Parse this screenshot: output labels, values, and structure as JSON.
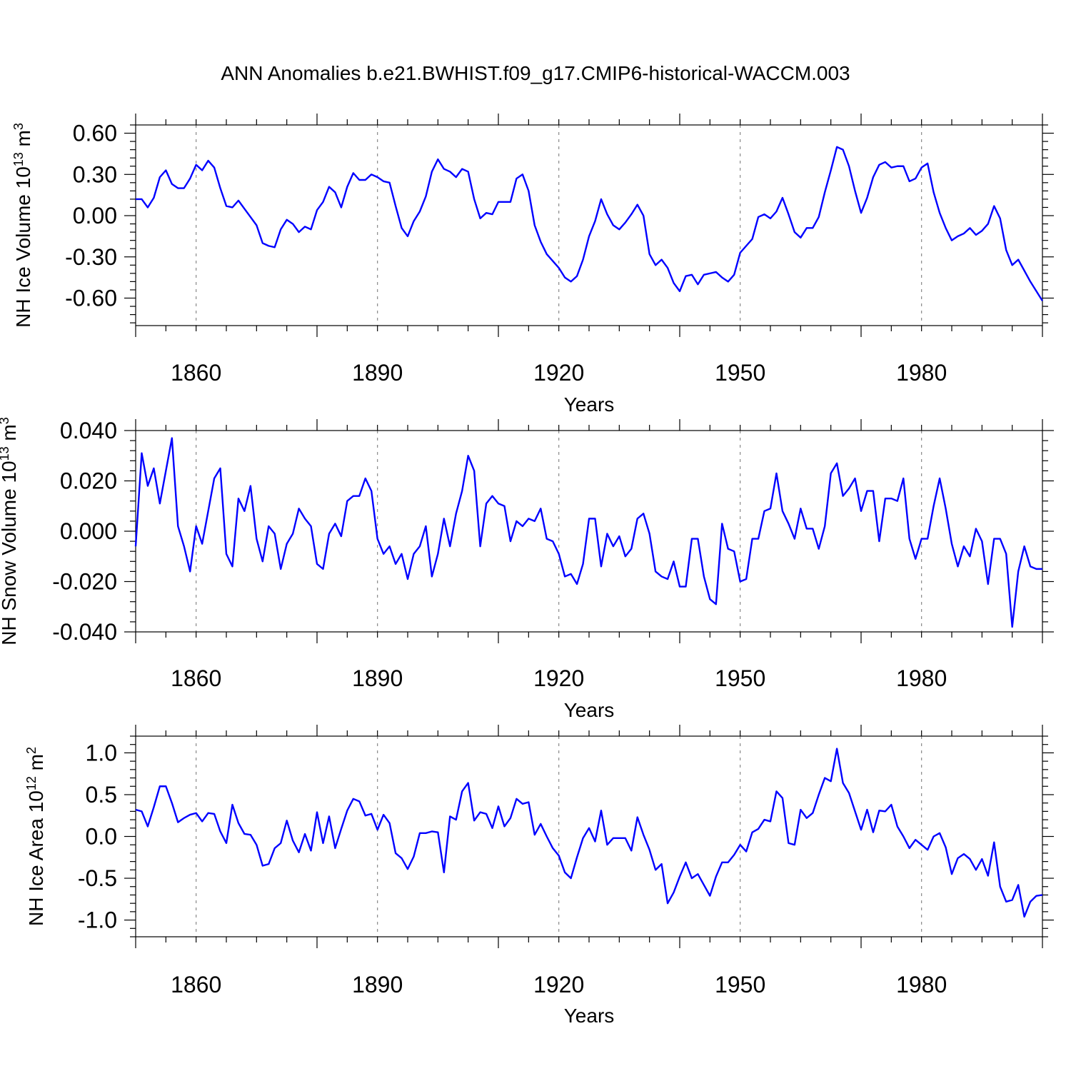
{
  "title": "ANN Anomalies b.e21.BWHIST.f09_g17.CMIP6-historical-WACCM.003",
  "colors": {
    "line": "#0000ff",
    "axis": "#000000",
    "grid": "#888888"
  },
  "chart_data": [
    {
      "type": "line",
      "name": "nh-ice-volume",
      "ylabel": "NH Ice Volume 10",
      "ylabel_exp": "13",
      "ylabel_unit": " m",
      "ylabel_unit_exp": "3",
      "xlabel": "Years",
      "xlim": [
        1850,
        2000
      ],
      "ylim": [
        -0.8,
        0.66
      ],
      "yticks": [
        0.6,
        0.3,
        0.0,
        -0.3,
        -0.6
      ],
      "ytick_labels": [
        "0.60",
        "0.30",
        "0.00",
        "-0.30",
        "-0.60"
      ],
      "xticks": [
        1860,
        1890,
        1920,
        1950,
        1980
      ],
      "xtick_labels": [
        "1860",
        "1890",
        "1920",
        "1950",
        "1980"
      ],
      "x_start": 1850,
      "values": [
        0.12,
        0.12,
        0.06,
        0.13,
        0.28,
        0.33,
        0.23,
        0.2,
        0.2,
        0.27,
        0.37,
        0.33,
        0.4,
        0.35,
        0.2,
        0.07,
        0.06,
        0.11,
        0.05,
        -0.01,
        -0.07,
        -0.2,
        -0.22,
        -0.23,
        -0.1,
        -0.03,
        -0.06,
        -0.12,
        -0.08,
        -0.1,
        0.04,
        0.1,
        0.21,
        0.17,
        0.06,
        0.21,
        0.31,
        0.26,
        0.26,
        0.3,
        0.28,
        0.25,
        0.24,
        0.07,
        -0.09,
        -0.15,
        -0.04,
        0.03,
        0.14,
        0.32,
        0.41,
        0.34,
        0.32,
        0.28,
        0.34,
        0.32,
        0.12,
        -0.02,
        0.02,
        0.01,
        0.1,
        0.1,
        0.1,
        0.27,
        0.3,
        0.18,
        -0.07,
        -0.19,
        -0.28,
        -0.33,
        -0.38,
        -0.45,
        -0.48,
        -0.44,
        -0.32,
        -0.15,
        -0.04,
        0.12,
        0.01,
        -0.07,
        -0.1,
        -0.05,
        0.01,
        0.08,
        0.0,
        -0.28,
        -0.36,
        -0.32,
        -0.38,
        -0.49,
        -0.55,
        -0.44,
        -0.43,
        -0.5,
        -0.43,
        -0.42,
        -0.41,
        -0.45,
        -0.48,
        -0.43,
        -0.27,
        -0.22,
        -0.17,
        -0.01,
        0.01,
        -0.02,
        0.03,
        0.13,
        0.01,
        -0.12,
        -0.16,
        -0.09,
        -0.09,
        -0.01,
        0.17,
        0.33,
        0.5,
        0.48,
        0.36,
        0.18,
        0.02,
        0.13,
        0.28,
        0.37,
        0.39,
        0.35,
        0.36,
        0.36,
        0.25,
        0.27,
        0.35,
        0.38,
        0.17,
        0.02,
        -0.09,
        -0.18,
        -0.15,
        -0.13,
        -0.09,
        -0.14,
        -0.11,
        -0.06,
        0.07,
        -0.02,
        -0.25,
        -0.36,
        -0.32,
        -0.4,
        -0.48,
        -0.55,
        -0.62
      ]
    },
    {
      "type": "line",
      "name": "nh-snow-volume",
      "ylabel": "NH Snow Volume 10",
      "ylabel_exp": "13",
      "ylabel_unit": " m",
      "ylabel_unit_exp": "3",
      "xlabel": "Years",
      "xlim": [
        1850,
        2000
      ],
      "ylim": [
        -0.04,
        0.04
      ],
      "yticks": [
        0.04,
        0.02,
        0.0,
        -0.02,
        -0.04
      ],
      "ytick_labels": [
        "0.040",
        "0.020",
        "0.000",
        "-0.020",
        "-0.040"
      ],
      "xticks": [
        1860,
        1890,
        1920,
        1950,
        1980
      ],
      "xtick_labels": [
        "1860",
        "1890",
        "1920",
        "1950",
        "1980"
      ],
      "x_start": 1850,
      "values": [
        -0.006,
        0.031,
        0.018,
        0.025,
        0.011,
        0.024,
        0.037,
        0.002,
        -0.006,
        -0.016,
        0.002,
        -0.005,
        0.008,
        0.021,
        0.025,
        -0.009,
        -0.014,
        0.013,
        0.008,
        0.018,
        -0.003,
        -0.012,
        0.002,
        -0.001,
        -0.015,
        -0.005,
        -0.001,
        0.009,
        0.005,
        0.002,
        -0.013,
        -0.015,
        -0.001,
        0.003,
        -0.002,
        0.012,
        0.014,
        0.014,
        0.021,
        0.016,
        -0.003,
        -0.009,
        -0.006,
        -0.013,
        -0.009,
        -0.019,
        -0.009,
        -0.006,
        0.002,
        -0.018,
        -0.009,
        0.005,
        -0.006,
        0.007,
        0.016,
        0.03,
        0.024,
        -0.006,
        0.011,
        0.014,
        0.011,
        0.01,
        -0.004,
        0.004,
        0.002,
        0.005,
        0.004,
        0.009,
        -0.003,
        -0.004,
        -0.009,
        -0.018,
        -0.017,
        -0.021,
        -0.013,
        0.005,
        0.005,
        -0.014,
        -0.001,
        -0.006,
        -0.002,
        -0.01,
        -0.007,
        0.005,
        0.007,
        -0.001,
        -0.016,
        -0.018,
        -0.019,
        -0.012,
        -0.022,
        -0.022,
        -0.003,
        -0.003,
        -0.018,
        -0.027,
        -0.029,
        0.003,
        -0.007,
        -0.008,
        -0.02,
        -0.019,
        -0.003,
        -0.003,
        0.008,
        0.009,
        0.023,
        0.008,
        0.003,
        -0.003,
        0.009,
        0.001,
        0.001,
        -0.007,
        0.002,
        0.023,
        0.027,
        0.014,
        0.017,
        0.021,
        0.008,
        0.016,
        0.016,
        -0.004,
        0.013,
        0.013,
        0.012,
        0.021,
        -0.003,
        -0.011,
        -0.003,
        -0.003,
        0.01,
        0.021,
        0.009,
        -0.005,
        -0.014,
        -0.006,
        -0.01,
        0.001,
        -0.004,
        -0.021,
        -0.003,
        -0.003,
        -0.009,
        -0.038,
        -0.016,
        -0.006,
        -0.014,
        -0.015,
        -0.015
      ]
    },
    {
      "type": "line",
      "name": "nh-ice-area",
      "ylabel": "NH Ice Area 10",
      "ylabel_exp": "12",
      "ylabel_unit": " m",
      "ylabel_unit_exp": "2",
      "xlabel": "Years",
      "xlim": [
        1850,
        2000
      ],
      "ylim": [
        -1.2,
        1.2
      ],
      "yticks": [
        1.0,
        0.5,
        0.0,
        -0.5,
        -1.0
      ],
      "ytick_labels": [
        "1.0",
        "0.5",
        "0.0",
        "-0.5",
        "-1.0"
      ],
      "xticks": [
        1860,
        1890,
        1920,
        1950,
        1980
      ],
      "xtick_labels": [
        "1860",
        "1890",
        "1920",
        "1950",
        "1980"
      ],
      "x_start": 1850,
      "values": [
        0.32,
        0.3,
        0.12,
        0.35,
        0.6,
        0.6,
        0.4,
        0.17,
        0.22,
        0.26,
        0.28,
        0.18,
        0.28,
        0.27,
        0.06,
        -0.08,
        0.38,
        0.16,
        0.03,
        0.02,
        -0.1,
        -0.35,
        -0.33,
        -0.14,
        -0.08,
        0.19,
        -0.05,
        -0.19,
        0.03,
        -0.17,
        0.29,
        -0.08,
        0.24,
        -0.14,
        0.09,
        0.31,
        0.45,
        0.42,
        0.25,
        0.27,
        0.08,
        0.26,
        0.16,
        -0.2,
        -0.26,
        -0.39,
        -0.24,
        0.04,
        0.04,
        0.06,
        0.05,
        -0.43,
        0.24,
        0.2,
        0.54,
        0.64,
        0.19,
        0.29,
        0.27,
        0.1,
        0.36,
        0.12,
        0.22,
        0.45,
        0.39,
        0.41,
        0.02,
        0.15,
        0.0,
        -0.14,
        -0.23,
        -0.43,
        -0.5,
        -0.25,
        -0.02,
        0.1,
        -0.06,
        0.31,
        -0.1,
        -0.02,
        -0.02,
        -0.02,
        -0.17,
        0.23,
        0.02,
        -0.16,
        -0.4,
        -0.33,
        -0.8,
        -0.67,
        -0.48,
        -0.31,
        -0.5,
        -0.45,
        -0.58,
        -0.71,
        -0.48,
        -0.31,
        -0.31,
        -0.22,
        -0.1,
        -0.18,
        0.05,
        0.09,
        0.2,
        0.18,
        0.54,
        0.46,
        -0.08,
        -0.1,
        0.32,
        0.22,
        0.28,
        0.5,
        0.7,
        0.66,
        1.05,
        0.64,
        0.52,
        0.3,
        0.08,
        0.32,
        0.05,
        0.31,
        0.3,
        0.38,
        0.12,
        0.0,
        -0.14,
        -0.04,
        -0.1,
        -0.16,
        0.0,
        0.04,
        -0.13,
        -0.45,
        -0.26,
        -0.21,
        -0.27,
        -0.4,
        -0.27,
        -0.47,
        -0.07,
        -0.6,
        -0.78,
        -0.76,
        -0.58,
        -0.96,
        -0.78,
        -0.71,
        -0.7
      ]
    }
  ]
}
